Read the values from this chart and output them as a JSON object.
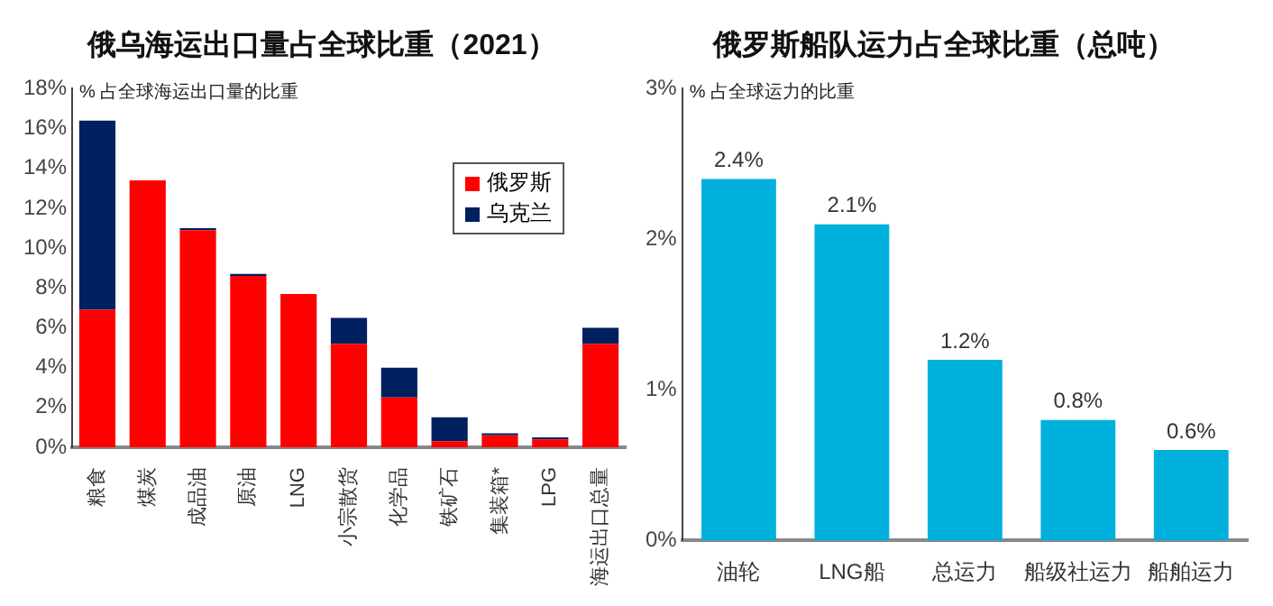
{
  "chart_data": [
    {
      "type": "bar",
      "title": "俄乌海运出口量占全球比重（2021）",
      "ylabel": "% 占全球海运出口量的比重",
      "categories": [
        "粮食",
        "煤炭",
        "成品油",
        "原油",
        "LNG",
        "小宗散货",
        "化学品",
        "铁矿石",
        "集装箱*",
        "LPG",
        "海运出口总量"
      ],
      "stacked": true,
      "legend": "top right",
      "series": [
        {
          "name": "俄罗斯",
          "color": "#ff0000",
          "values": [
            6.9,
            13.4,
            10.9,
            8.6,
            7.7,
            5.2,
            2.5,
            0.3,
            0.6,
            0.4,
            5.2
          ]
        },
        {
          "name": "乌克兰",
          "color": "#002060",
          "values": [
            9.5,
            0,
            0.1,
            0.1,
            0,
            1.3,
            1.5,
            1.2,
            0.1,
            0.1,
            0.8
          ]
        }
      ],
      "ylim": [
        0,
        18
      ],
      "yticks": [
        {
          "value": 0,
          "label": "0%"
        },
        {
          "value": 2,
          "label": "2%"
        },
        {
          "value": 4,
          "label": "4%"
        },
        {
          "value": 6,
          "label": "6%"
        },
        {
          "value": 8,
          "label": "8%"
        },
        {
          "value": 10,
          "label": "10%"
        },
        {
          "value": 12,
          "label": "12%"
        },
        {
          "value": 14,
          "label": "14%"
        },
        {
          "value": 16,
          "label": "16%"
        },
        {
          "value": 18,
          "label": "18%"
        }
      ]
    },
    {
      "type": "bar",
      "title": "俄罗斯船队运力占全球比重（总吨）",
      "ylabel": "% 占全球运力的比重",
      "categories": [
        "油轮",
        "LNG船",
        "总运力",
        "船级社运力",
        "船舶运力"
      ],
      "series": [
        {
          "color": "#00b0dc",
          "values": [
            2.4,
            2.1,
            1.2,
            0.8,
            0.6
          ],
          "value_labels": [
            "2.4%",
            "2.1%",
            "1.2%",
            "0.8%",
            "0.6%"
          ]
        }
      ],
      "ylim": [
        0,
        3
      ],
      "yticks": [
        {
          "value": 0,
          "label": "0%"
        },
        {
          "value": 1,
          "label": "1%"
        },
        {
          "value": 2,
          "label": "2%"
        },
        {
          "value": 3,
          "label": "3%"
        }
      ]
    }
  ]
}
